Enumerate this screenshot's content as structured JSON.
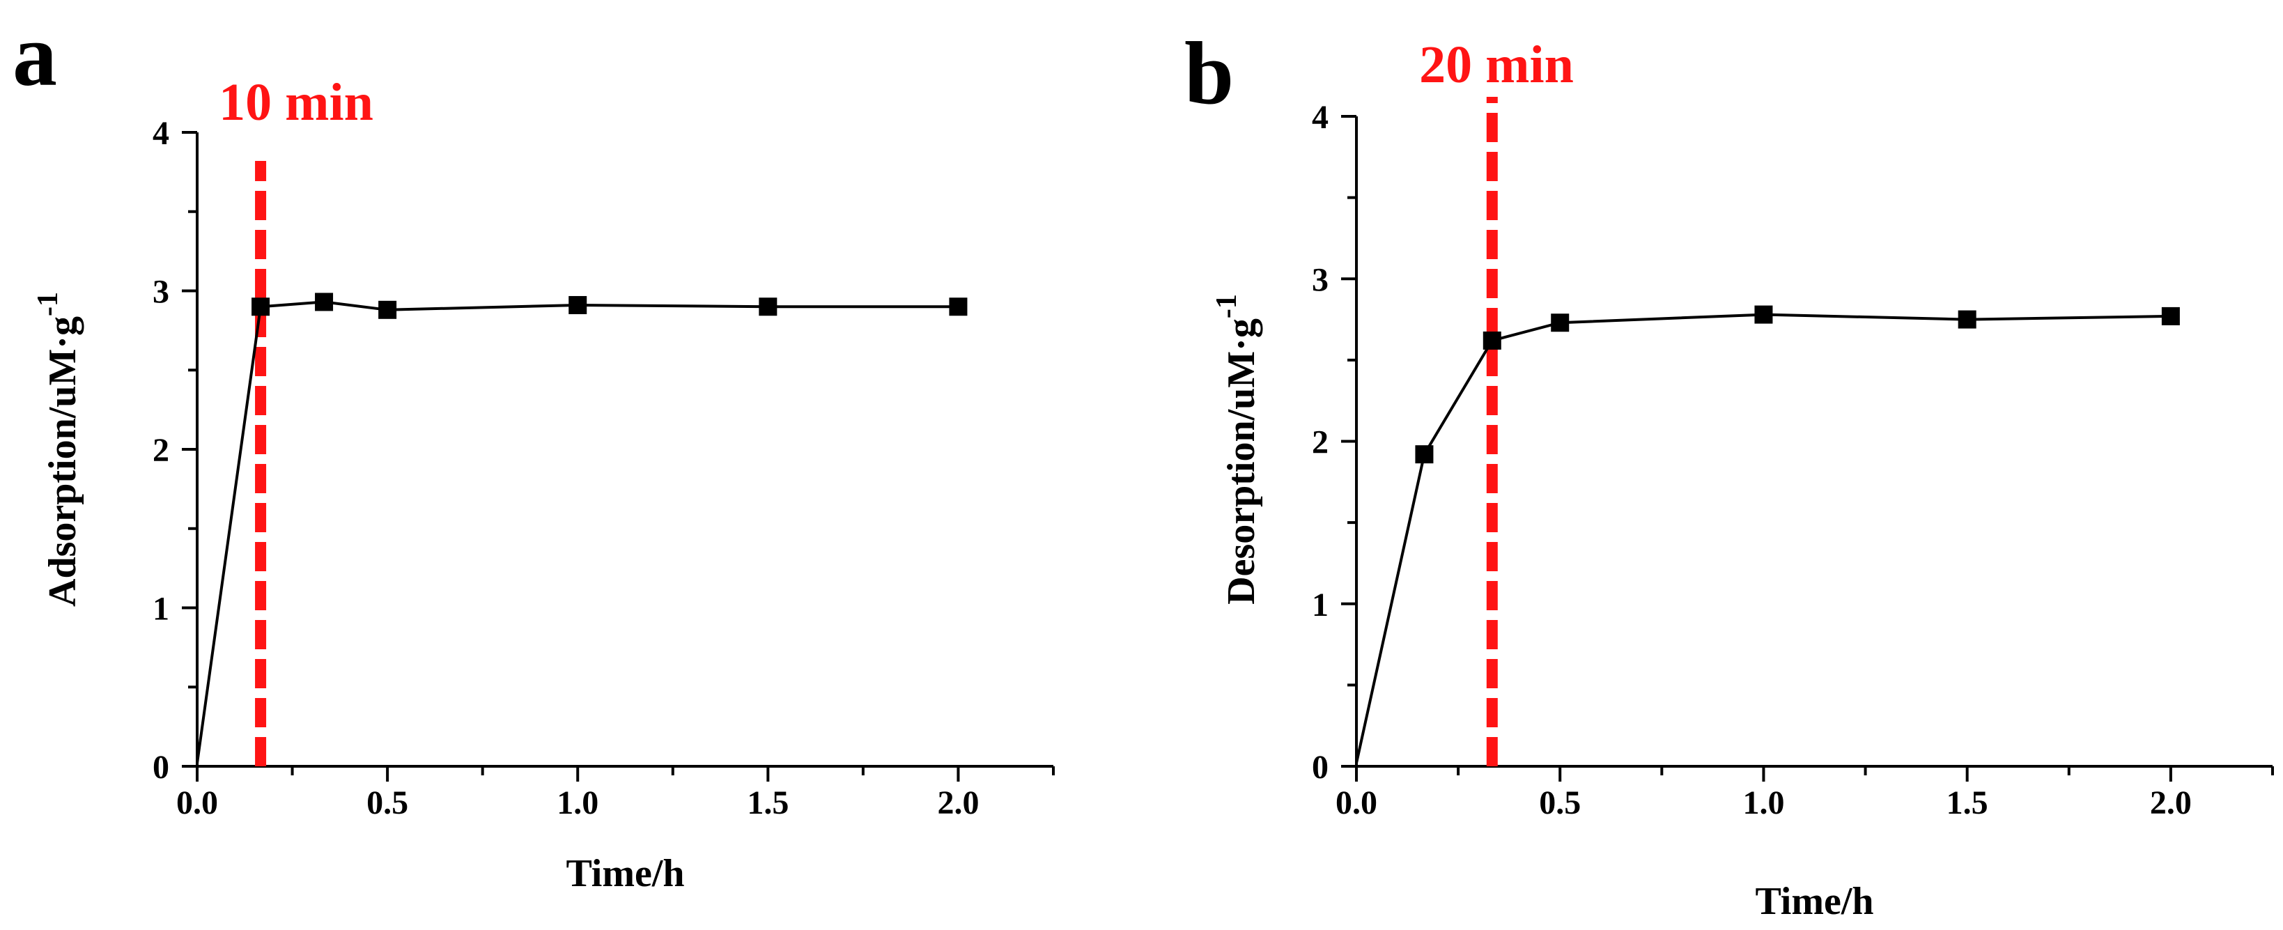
{
  "colors": {
    "axis": "#000000",
    "series": "#000000",
    "marker": "#000000",
    "annotation": "#ff1414"
  },
  "chart_data": [
    {
      "type": "line",
      "panel_label": "a",
      "xlabel": "Time/h",
      "ylabel_main": "Adsorption/uM·g",
      "ylabel_sup": "-1",
      "xlim": [
        0,
        2.25
      ],
      "ylim": [
        0,
        4
      ],
      "xticks": [
        0.0,
        0.5,
        1.0,
        1.5,
        2.0
      ],
      "xtick_labels": [
        "0.0",
        "0.5",
        "1.0",
        "1.5",
        "2.0"
      ],
      "yticks": [
        0,
        1,
        2,
        3,
        4
      ],
      "ytick_labels": [
        "0",
        "1",
        "2",
        "3",
        "4"
      ],
      "series": [
        {
          "name": "Adsorption",
          "x": [
            0,
            0.1667,
            0.3333,
            0.5,
            1.0,
            1.5,
            2.0
          ],
          "y": [
            0.02,
            2.9,
            2.93,
            2.88,
            2.91,
            2.9,
            2.9
          ],
          "marker_from_index": 1
        }
      ],
      "annotation": {
        "x": 0.1667,
        "label": "10 min",
        "line_top_y": 3.82
      }
    },
    {
      "type": "line",
      "panel_label": "b",
      "xlabel": "Time/h",
      "ylabel_main": "Desorption/uM·g",
      "ylabel_sup": "-1",
      "xlim": [
        0,
        2.25
      ],
      "ylim": [
        0,
        4
      ],
      "xticks": [
        0.0,
        0.5,
        1.0,
        1.5,
        2.0
      ],
      "xtick_labels": [
        "0.0",
        "0.5",
        "1.0",
        "1.5",
        "2.0"
      ],
      "yticks": [
        0,
        1,
        2,
        3,
        4
      ],
      "ytick_labels": [
        "0",
        "1",
        "2",
        "3",
        "4"
      ],
      "series": [
        {
          "name": "Desorption",
          "x": [
            0,
            0.1667,
            0.3333,
            0.5,
            1.0,
            1.5,
            2.0
          ],
          "y": [
            0.02,
            1.92,
            2.62,
            2.73,
            2.78,
            2.75,
            2.77
          ],
          "marker_from_index": 1
        }
      ],
      "annotation": {
        "x": 0.3333,
        "label": "20 min",
        "line_top_y": 4.12
      }
    }
  ]
}
